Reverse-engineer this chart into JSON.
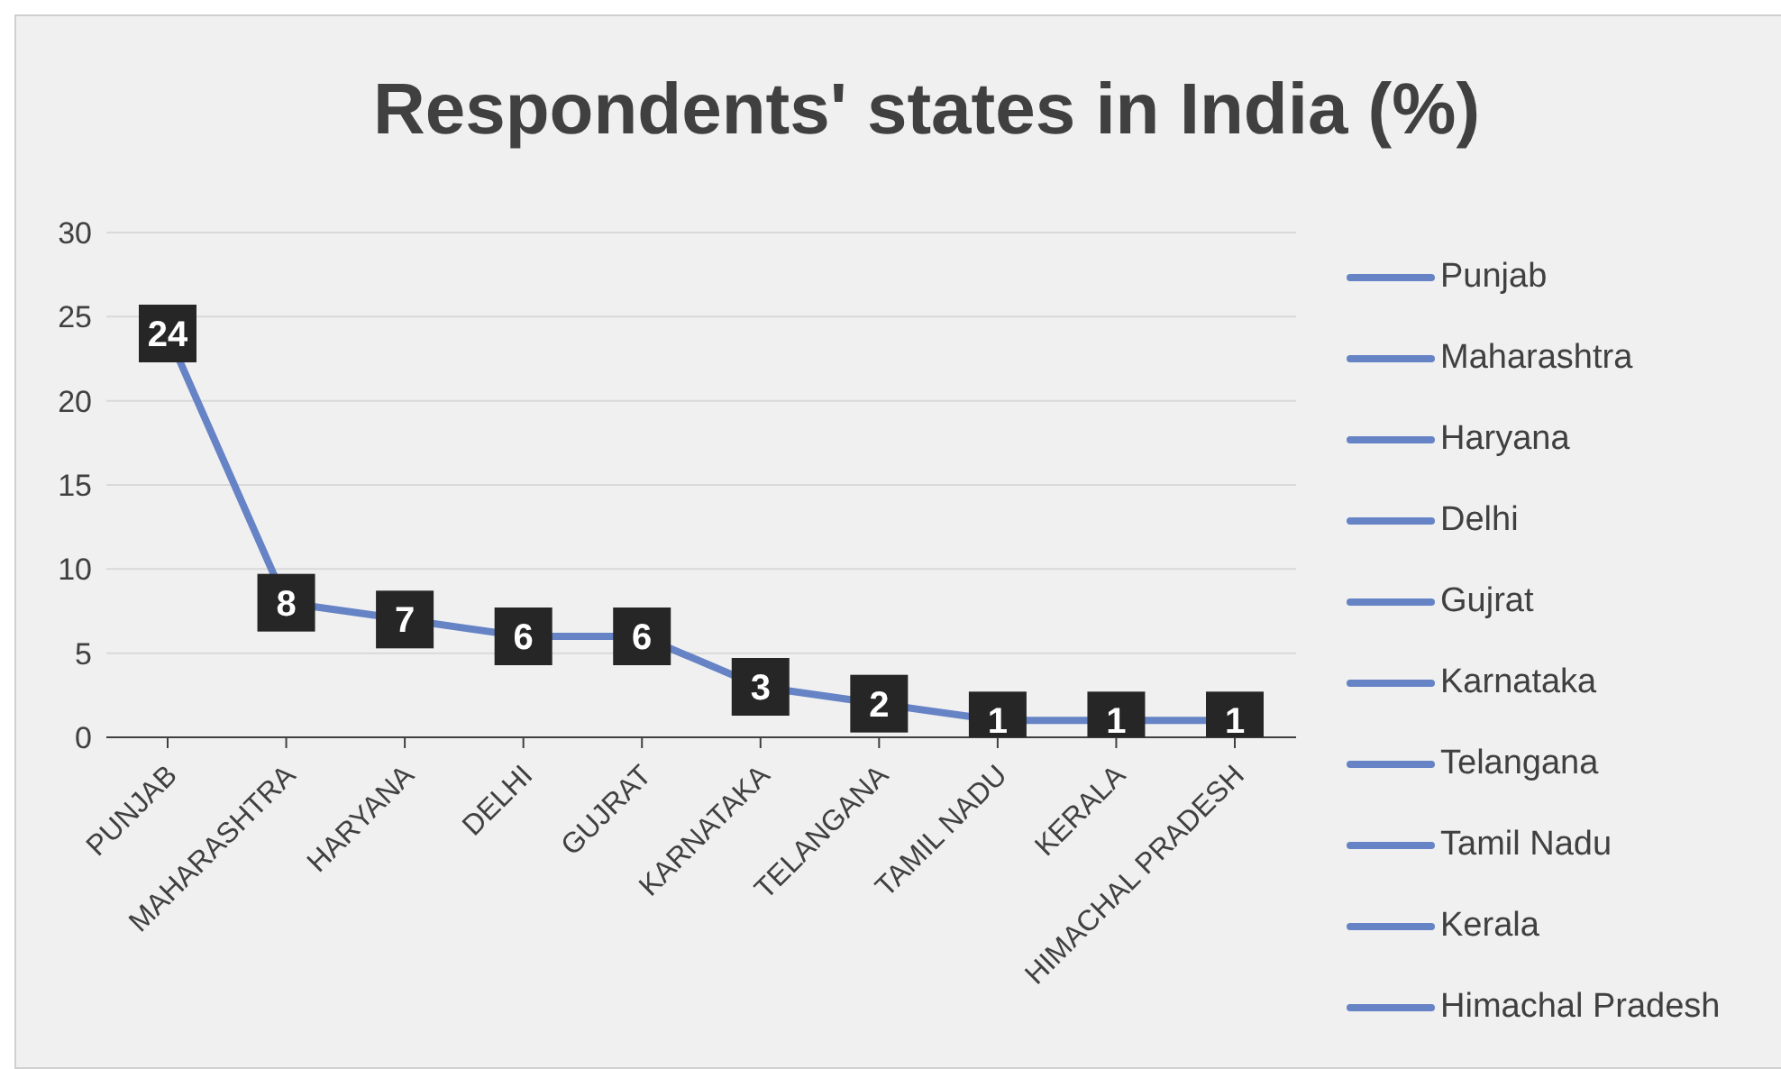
{
  "chart_data": {
    "type": "line",
    "title": "Respondents' states in India (%)",
    "categories": [
      "PUNJAB",
      "MAHARASHTRA",
      "HARYANA",
      "DELHI",
      "GUJRAT",
      "KARNATAKA",
      "TELANGANA",
      "TAMIL NADU",
      "KERALA",
      "HIMACHAL PRADESH"
    ],
    "values": [
      24,
      8,
      7,
      6,
      6,
      3,
      2,
      1,
      1,
      1
    ],
    "color": "#6683c6",
    "ylim": [
      0,
      30
    ],
    "yticks": [
      0,
      5,
      10,
      15,
      20,
      25,
      30
    ],
    "grid": "y",
    "data_labels": true,
    "line_style": "solid",
    "marker": "square",
    "annotations": [
      "Punjab",
      "Maharashtra",
      "Haryana",
      "Delhi",
      "Gujrat",
      "Karnataka",
      "Telangana",
      "Tamil Nadu",
      "Kerala",
      "Himachal Pradesh"
    ]
  }
}
